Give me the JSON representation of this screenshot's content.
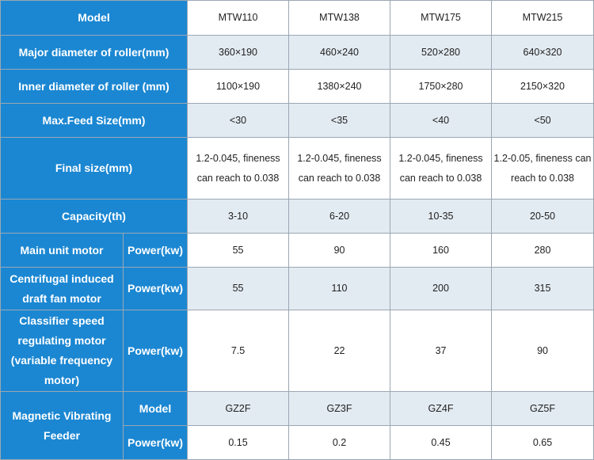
{
  "columns": [
    "MTW110",
    "MTW138",
    "MTW175",
    "MTW215"
  ],
  "header_label": "Model",
  "rows": [
    {
      "label": "Major diameter of roller(mm)",
      "values": [
        "360×190",
        "460×240",
        "520×280",
        "640×320"
      ]
    },
    {
      "label": "Inner diameter of roller (mm)",
      "values": [
        "1100×190",
        "1380×240",
        "1750×280",
        "2150×320"
      ]
    },
    {
      "label": "Max.Feed Size(mm)",
      "values": [
        "<30",
        "<35",
        "<40",
        "<50"
      ]
    },
    {
      "label": "Final size(mm)",
      "values": [
        "1.2-0.045, fineness can reach to 0.038",
        "1.2-0.045, fineness can reach to 0.038",
        "1.2-0.045, fineness can reach to 0.038",
        "1.2-0.05, fineness can reach to 0.038"
      ]
    },
    {
      "label": "Capacity(th)",
      "values": [
        "3-10",
        "6-20",
        "10-35",
        "20-50"
      ]
    }
  ],
  "motors": [
    {
      "label": "Main unit motor",
      "sub": "Power(kw)",
      "values": [
        "55",
        "90",
        "160",
        "280"
      ]
    },
    {
      "label": "Centrifugal induced draft fan motor",
      "sub": "Power(kw)",
      "values": [
        "55",
        "110",
        "200",
        "315"
      ]
    },
    {
      "label": "Classifier speed regulating motor (variable frequency motor)",
      "sub": "Power(kw)",
      "values": [
        "7.5",
        "22",
        "37",
        "90"
      ]
    }
  ],
  "feeder": {
    "label": "Magnetic Vibrating Feeder",
    "model_label": "Model",
    "models": [
      "GZ2F",
      "GZ3F",
      "GZ4F",
      "GZ5F"
    ],
    "power_label": "Power(kw)",
    "powers": [
      "0.15",
      "0.2",
      "0.45",
      "0.65"
    ]
  },
  "colors": {
    "header_bg": "#1b87d2",
    "header_text": "#ffffff",
    "shade_row": "#e3ebf2",
    "plain_row": "#ffffff",
    "border": "#9aa7b3"
  }
}
